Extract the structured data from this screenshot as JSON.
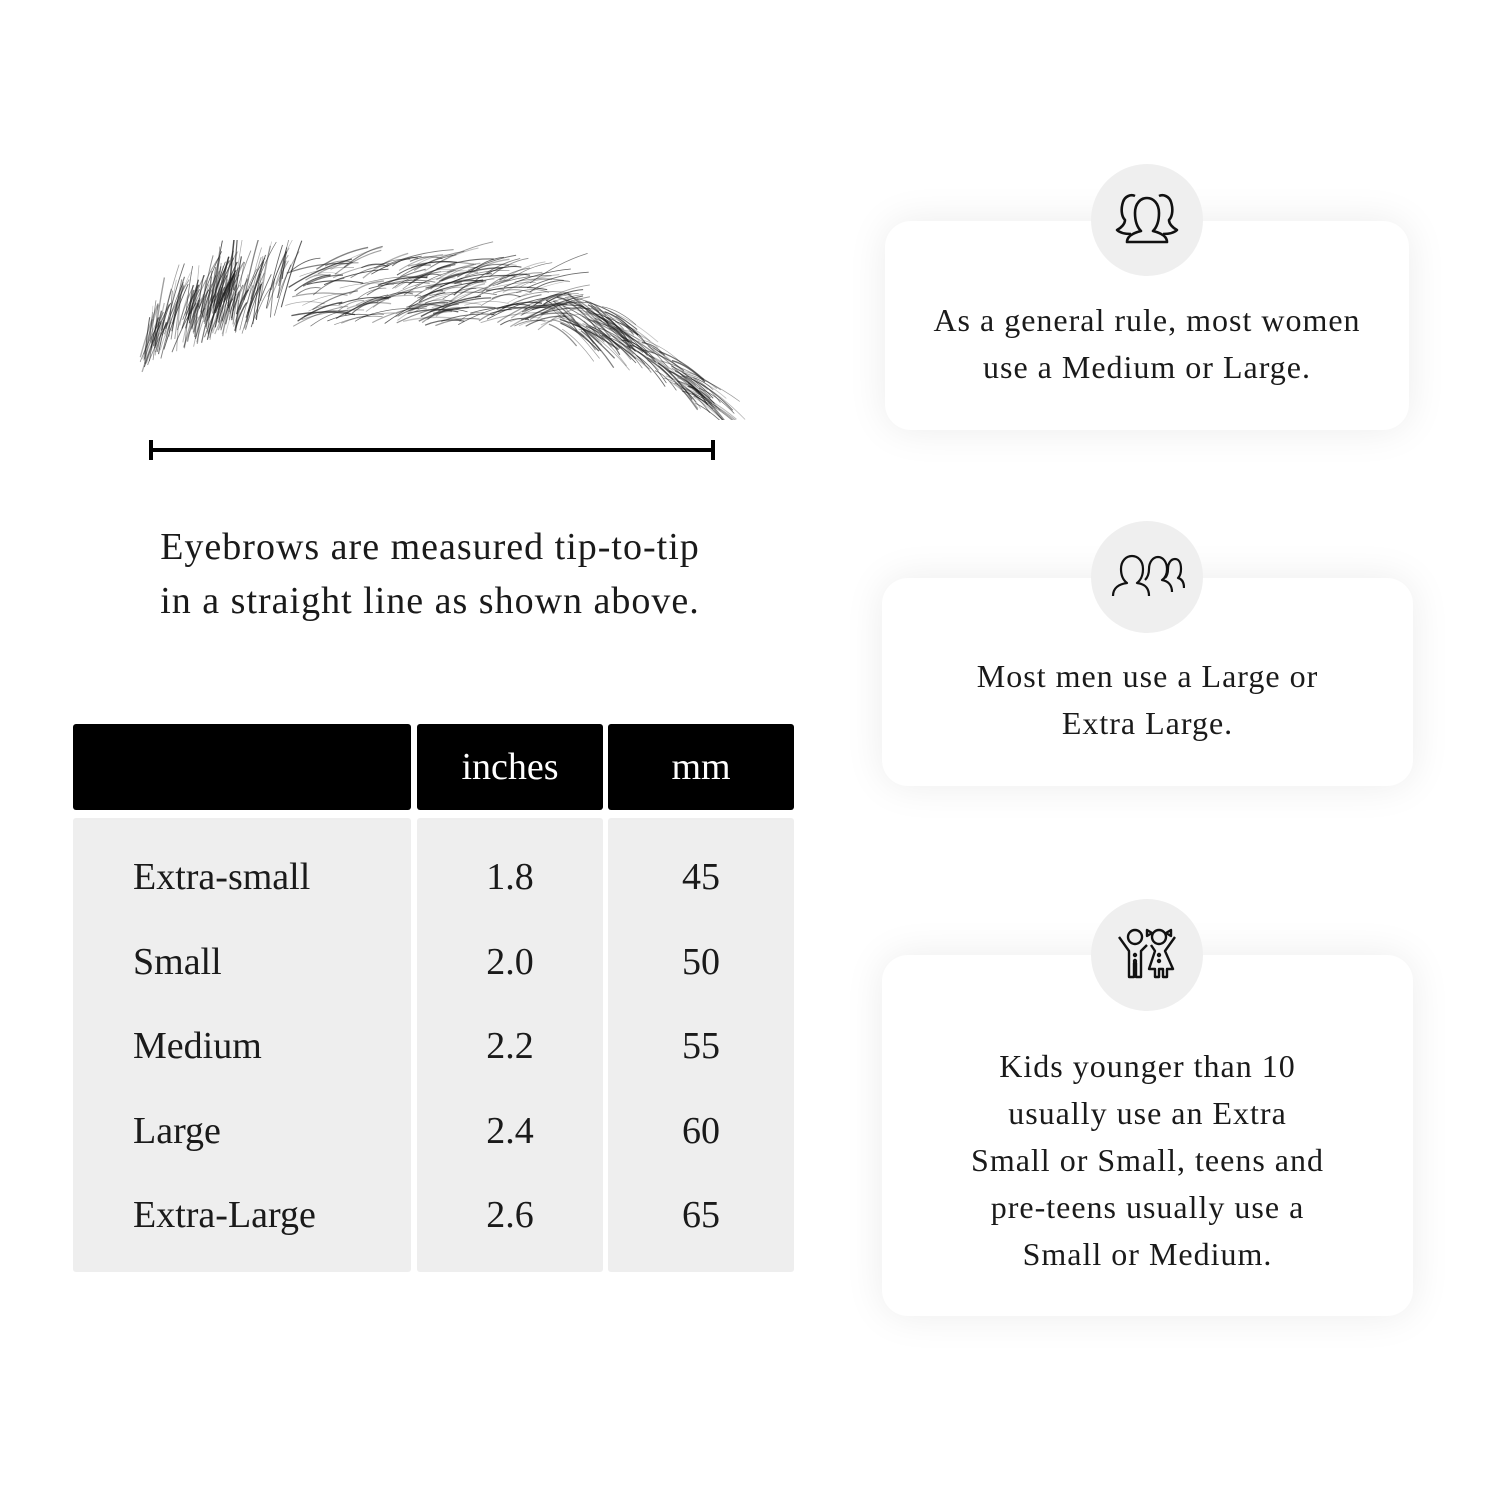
{
  "measurement": {
    "caption_line1": "Eyebrows are measured tip-to-tip",
    "caption_line2": "in a straight line as shown above."
  },
  "table": {
    "headers": [
      "",
      "inches",
      "mm"
    ],
    "rows": [
      {
        "size": "Extra-small",
        "inches": "1.8",
        "mm": "45"
      },
      {
        "size": "Small",
        "inches": "2.0",
        "mm": "50"
      },
      {
        "size": "Medium",
        "inches": "2.2",
        "mm": "55"
      },
      {
        "size": "Large",
        "inches": "2.4",
        "mm": "60"
      },
      {
        "size": "Extra-Large",
        "inches": "2.6",
        "mm": "65"
      }
    ]
  },
  "cards": [
    {
      "icon": "women-group-icon",
      "lines": [
        "As a general rule, most women",
        "use a Medium or Large."
      ]
    },
    {
      "icon": "men-group-icon",
      "lines": [
        "Most men use a Large or",
        "Extra Large."
      ]
    },
    {
      "icon": "kids-icon",
      "lines": [
        "Kids younger than 10",
        "usually use an Extra",
        "Small or Small, teens and",
        "pre-teens usually use a",
        "Small or Medium."
      ]
    }
  ],
  "colors": {
    "header_bg": "#000000",
    "body_bg": "#eeeeee",
    "icon_circle": "#efefef"
  }
}
